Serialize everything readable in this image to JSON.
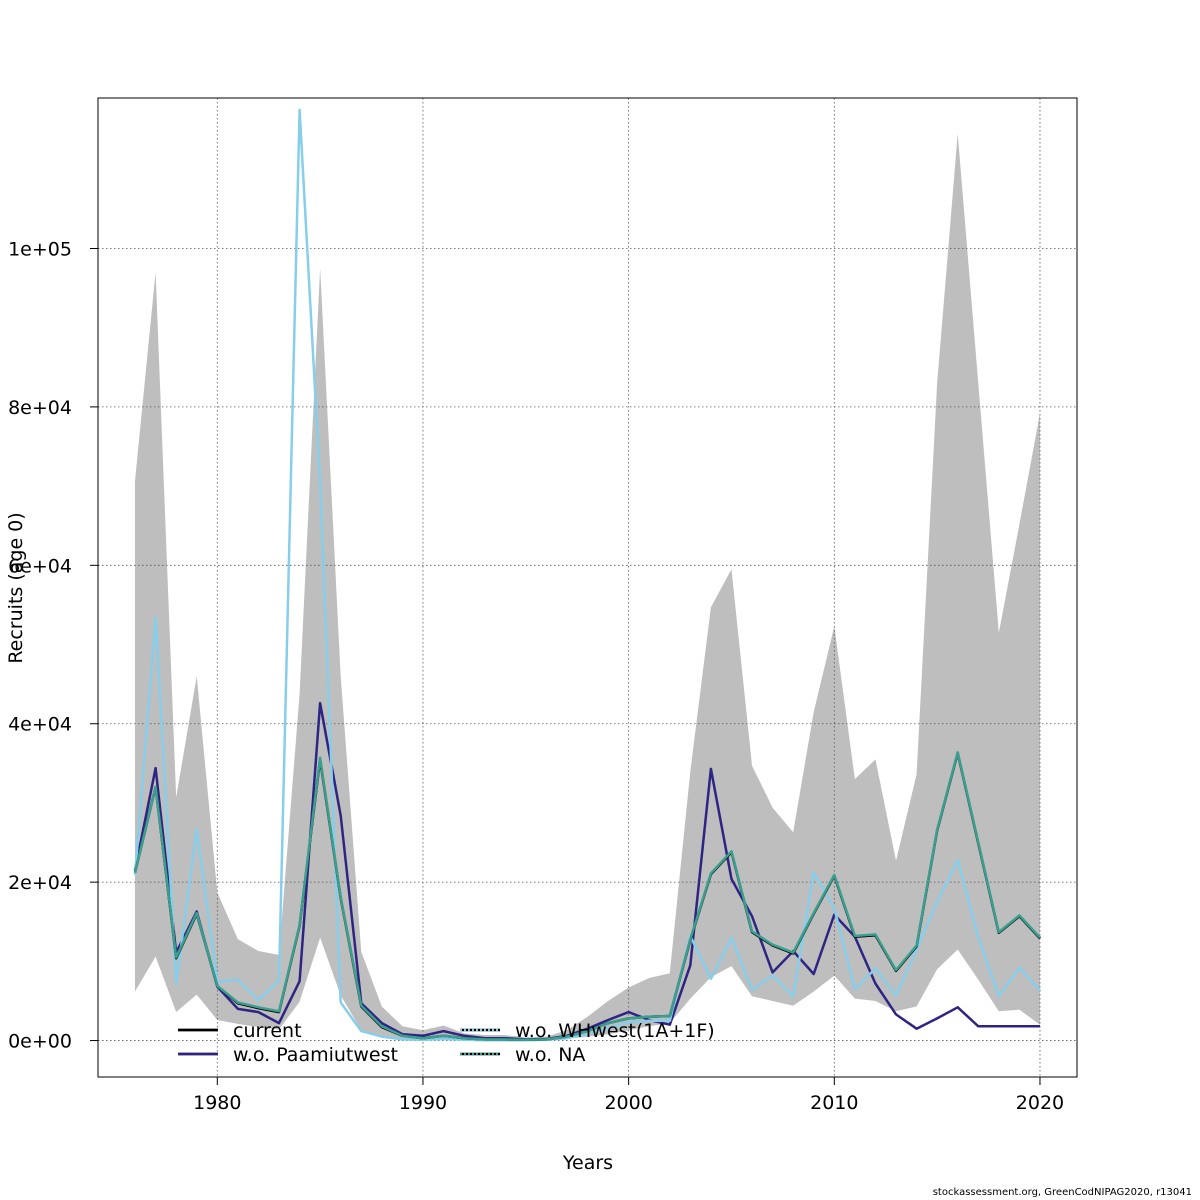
{
  "chart_data": {
    "type": "line",
    "xlabel": "Years",
    "ylabel": "Recruits (age 0)",
    "xlim": [
      1974.2,
      2021.8
    ],
    "ylim": [
      -4600,
      119000
    ],
    "x_ticks": [
      1980,
      1990,
      2000,
      2010,
      2020
    ],
    "y_ticks": [
      0,
      20000,
      40000,
      60000,
      80000,
      100000
    ],
    "y_tick_labels": [
      "0e+00",
      "2e+04",
      "4e+04",
      "6e+04",
      "8e+04",
      "1e+05"
    ],
    "grid": true,
    "legend_position": "bottom-left",
    "years": [
      1976,
      1977,
      1978,
      1979,
      1980,
      1981,
      1982,
      1983,
      1984,
      1985,
      1986,
      1987,
      1988,
      1989,
      1990,
      1991,
      1992,
      1993,
      1994,
      1995,
      1996,
      1997,
      1998,
      1999,
      2000,
      2001,
      2002,
      2003,
      2004,
      2005,
      2006,
      2007,
      2008,
      2009,
      2010,
      2011,
      2012,
      2013,
      2014,
      2015,
      2016,
      2017,
      2018,
      2019,
      2020
    ],
    "confidence_band": {
      "upper": [
        70700,
        97000,
        30700,
        46000,
        18700,
        12800,
        11300,
        10800,
        43700,
        97500,
        46000,
        11200,
        4300,
        1800,
        1300,
        1900,
        900,
        700,
        700,
        400,
        500,
        1300,
        3000,
        5000,
        6700,
        7900,
        8500,
        34000,
        54700,
        59500,
        34700,
        29400,
        26300,
        41500,
        52300,
        33000,
        35500,
        22700,
        33600,
        83000,
        114500,
        83000,
        51500,
        65200,
        79200
      ],
      "lower": [
        6200,
        10600,
        3600,
        5800,
        2600,
        2100,
        1700,
        1400,
        4900,
        13000,
        5700,
        1300,
        500,
        200,
        150,
        250,
        120,
        80,
        80,
        60,
        80,
        200,
        500,
        800,
        1300,
        1800,
        2200,
        5300,
        8000,
        9400,
        5600,
        5000,
        4400,
        6200,
        8200,
        5300,
        5000,
        3700,
        4300,
        9000,
        11500,
        7700,
        3700,
        3900,
        2000
      ]
    },
    "series": [
      {
        "name": "current",
        "color": "#000000",
        "style": "solid",
        "values": [
          21200,
          32000,
          10400,
          16000,
          6900,
          4700,
          4100,
          3600,
          14500,
          35500,
          18000,
          4300,
          1700,
          600,
          300,
          600,
          300,
          150,
          150,
          100,
          150,
          500,
          1200,
          2200,
          2800,
          3000,
          3100,
          12700,
          21000,
          23800,
          13700,
          12000,
          11000,
          16000,
          20800,
          13100,
          13300,
          8800,
          11900,
          26500,
          36300,
          24900,
          13600,
          15700,
          12900
        ]
      },
      {
        "name": "w.o. Paamiutwest",
        "color": "#2e2483",
        "style": "solid",
        "values": [
          21500,
          34400,
          11100,
          16300,
          6800,
          4000,
          3600,
          2200,
          7500,
          42600,
          28400,
          4700,
          2200,
          800,
          600,
          1200,
          600,
          300,
          300,
          150,
          200,
          600,
          1500,
          2600,
          3600,
          2600,
          2000,
          9500,
          34300,
          20400,
          15700,
          8600,
          11300,
          8400,
          15900,
          13100,
          7200,
          3300,
          1500,
          2800,
          4200,
          1800,
          1800,
          1800,
          1800
        ]
      },
      {
        "name": "w.o. WHwest(1A+1F)",
        "color": "#87ceeb",
        "style": "dotted",
        "values": [
          20900,
          53400,
          7200,
          26700,
          7400,
          7700,
          5100,
          7600,
          117500,
          70500,
          4800,
          1200,
          500,
          150,
          100,
          200,
          100,
          50,
          50,
          50,
          100,
          300,
          800,
          1600,
          2300,
          2500,
          2500,
          13200,
          7800,
          13000,
          6400,
          8200,
          5600,
          21200,
          16700,
          6500,
          9100,
          5700,
          11500,
          17500,
          22800,
          13000,
          5600,
          9200,
          6300
        ]
      },
      {
        "name": "w.o. NA",
        "color": "#3a9f8f",
        "style": "dotted",
        "values": [
          21200,
          32000,
          10500,
          16100,
          6900,
          4800,
          4200,
          3700,
          14600,
          35700,
          18100,
          4400,
          1800,
          600,
          300,
          600,
          300,
          150,
          150,
          100,
          150,
          500,
          1200,
          2200,
          2800,
          3000,
          3100,
          12800,
          21100,
          23900,
          13800,
          12100,
          11100,
          16100,
          20900,
          13200,
          13400,
          8900,
          12000,
          26600,
          36400,
          25000,
          13700,
          15800,
          13000
        ]
      }
    ]
  },
  "footer": "stockassessment.org, GreenCodNIPAG2020, r13041"
}
